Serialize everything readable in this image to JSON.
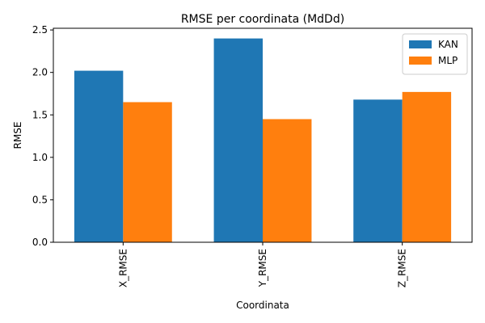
{
  "chart_data": {
    "type": "bar",
    "title": "RMSE per coordinata (MdDd)",
    "xlabel": "Coordinata",
    "ylabel": "RMSE",
    "categories": [
      "X_RMSE",
      "Y_RMSE",
      "Z_RMSE"
    ],
    "series": [
      {
        "name": "KAN",
        "values": [
          2.02,
          2.4,
          1.68
        ],
        "color": "#1f77b4"
      },
      {
        "name": "MLP",
        "values": [
          1.65,
          1.45,
          1.77
        ],
        "color": "#ff7f0e"
      }
    ],
    "ylim": [
      0,
      2.52
    ],
    "yticks": [
      "0.0",
      "0.5",
      "1.0",
      "1.5",
      "2.0",
      "2.5"
    ],
    "legend": "top-right",
    "grid": false
  }
}
